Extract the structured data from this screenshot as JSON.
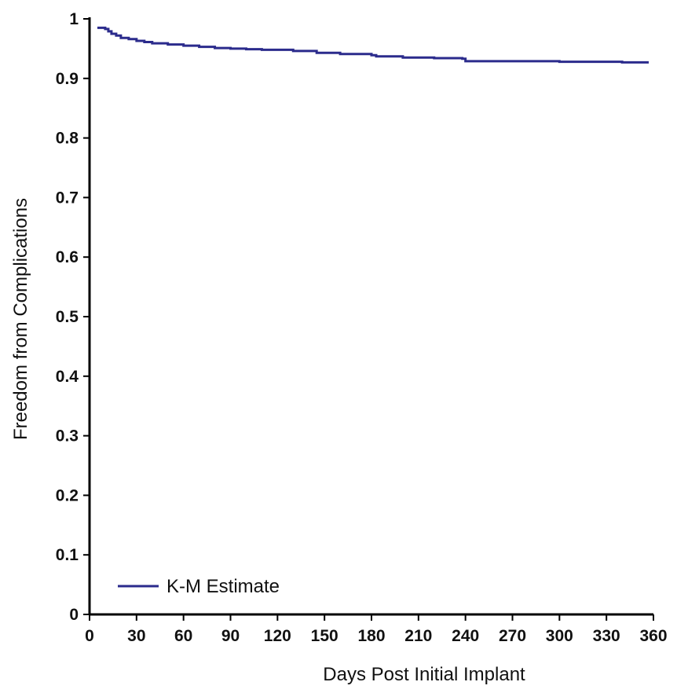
{
  "chart_data": {
    "type": "line",
    "xlabel": "Days Post Initial Implant",
    "ylabel": "Freedom from Complications",
    "xlim": [
      0,
      360
    ],
    "ylim": [
      0,
      1
    ],
    "xticks": [
      0,
      30,
      60,
      90,
      120,
      150,
      180,
      210,
      240,
      270,
      300,
      330,
      360
    ],
    "yticks": [
      0,
      0.1,
      0.2,
      0.3,
      0.4,
      0.5,
      0.6,
      0.7,
      0.8,
      0.9,
      1
    ],
    "ytick_labels": [
      "0",
      "0.1",
      "0.2",
      "0.3",
      "0.4",
      "0.5",
      "0.6",
      "0.7",
      "0.8",
      "0.9",
      "1"
    ],
    "grid": false,
    "legend_position": "bottom-left",
    "series": [
      {
        "name": "K-M Estimate",
        "color": "#2b2b8c",
        "step": true,
        "x": [
          5,
          10,
          12,
          14,
          17,
          20,
          25,
          30,
          35,
          40,
          50,
          60,
          70,
          80,
          90,
          100,
          110,
          130,
          145,
          160,
          180,
          183,
          200,
          220,
          238,
          240,
          245,
          270,
          300,
          330,
          340,
          357
        ],
        "y": [
          0.985,
          0.983,
          0.979,
          0.975,
          0.972,
          0.968,
          0.966,
          0.963,
          0.961,
          0.959,
          0.957,
          0.955,
          0.953,
          0.951,
          0.95,
          0.949,
          0.948,
          0.946,
          0.943,
          0.941,
          0.939,
          0.937,
          0.935,
          0.934,
          0.933,
          0.929,
          0.929,
          0.929,
          0.928,
          0.928,
          0.927,
          0.927
        ]
      }
    ]
  }
}
